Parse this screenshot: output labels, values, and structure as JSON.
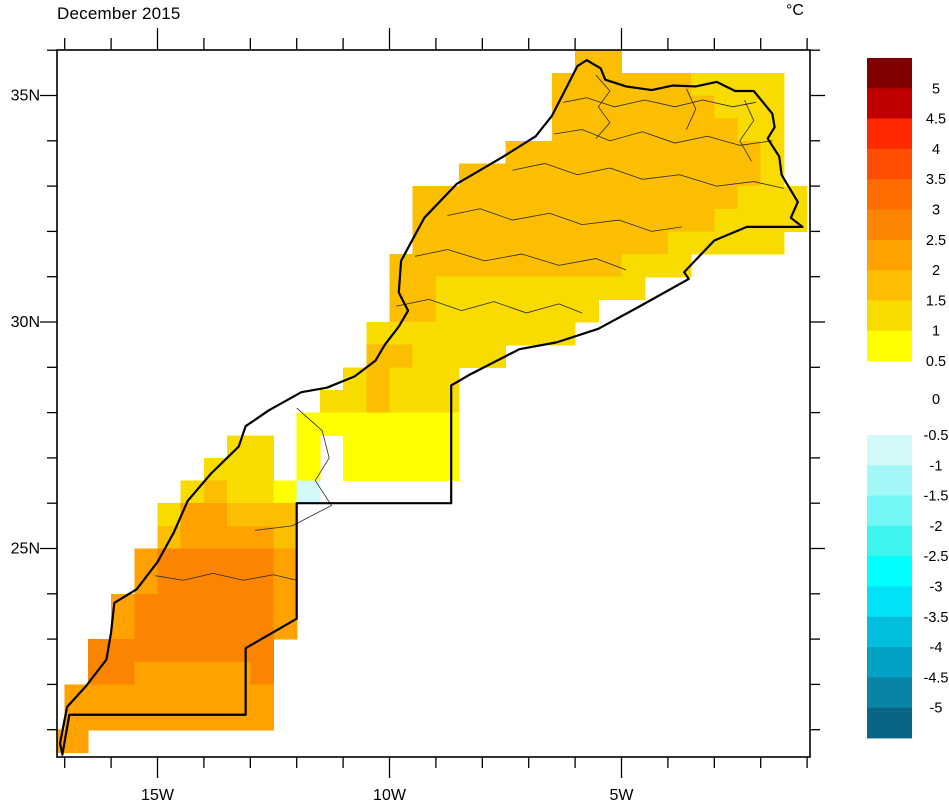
{
  "title": "December 2015",
  "unit_label": "°C",
  "axes": {
    "x_major_ticks": [
      {
        "label": "15W",
        "lon": -15
      },
      {
        "label": "10W",
        "lon": -10
      },
      {
        "label": "5W",
        "lon": -5
      }
    ],
    "x_minor_range": [
      -17,
      -1
    ],
    "y_major_ticks": [
      {
        "label": "35N",
        "lat": 35
      },
      {
        "label": "30N",
        "lat": 30
      },
      {
        "label": "25N",
        "lat": 25
      }
    ],
    "y_minor_range": [
      21,
      36
    ]
  },
  "colorbar": {
    "warm_labels": [
      "5",
      "4.5",
      "4",
      "3.5",
      "3",
      "2.5",
      "2",
      "1.5",
      "1",
      "0.5"
    ],
    "zero_label": "0",
    "cool_labels": [
      "-0.5",
      "-1",
      "-1.5",
      "-2",
      "-2.5",
      "-3",
      "-3.5",
      "-4",
      "-4.5",
      "-5"
    ],
    "warm_colors": [
      "#800000",
      "#C00000",
      "#FF2A00",
      "#FF4E00",
      "#FF6C00",
      "#FB8500",
      "#FFA200",
      "#FCBE00",
      "#F8DC00",
      "#FFFF00"
    ],
    "cool_colors": [
      "#D2FAFA",
      "#A2F8F8",
      "#72F6F6",
      "#3CF6EE",
      "#00FFFF",
      "#00E2F6",
      "#00BEDC",
      "#00A2C4",
      "#0A84A6",
      "#0A6486"
    ]
  },
  "map": {
    "grid": {
      "origin_lon": -17.5,
      "origin_lat": 36.5,
      "cell_deg": 0.5,
      "palette": {
        "y": "#FFFF00",
        "g": "#F8DC00",
        "a": "#FCBE00",
        "o": "#FFA200",
        "O": "#FB8500",
        "c": "#D2FAFA"
      },
      "palette_meaning": {
        "y": "0.5 to 1",
        "g": "1 to 1.5",
        "a": "1.5 to 2",
        "o": "2 to 2.5",
        "O": "2.5 to 3",
        "c": "-0.5 to -1"
      },
      "rows": [
        "..................................",
        ".......................aa.........",
        "......................aaaaaagggg..",
        "......................aaaaaaaggg..",
        "......................aaaaaaaagg..",
        "....................aaaaaaaaaaag..",
        "..................aaaaaaaaaaaaag..",
        "................aaaaaaaaaaaaaaggg.",
        "................aaaaaaaaaaaaagggg.",
        "................aaaaaaaaaaaggggg..",
        "...............aaaaaaaaaaggg......",
        "...............aaggggggggg........",
        "...............aaggggggg..........",
        "..............ggggggggg...........",
        "..............aagggg..............",
        ".............gaggg................",
        "............ggaggg................",
        "...........yyyyyyy................",
        "........gg.y.yyyyy................",
        ".......ggg.y.yyyyy................",
        "......gaggyc......................",
        ".....gooaaa.......................",
        ".....aooooa.......................",
        "....oOOOOOo.......................",
        "....oOOOOOo.......................",
        "...oOOOOOOo.......................",
        "...oOOOOOOo.......................",
        "..OOOOOOOO........................",
        "..OOoooooO........................",
        ".ooooooooo........................",
        ".ooooooooo........................",
        "oo................................",
        ".................................."
      ]
    },
    "border": [
      [
        -5.75,
        35.78
      ],
      [
        -5.45,
        35.6
      ],
      [
        -5.35,
        35.35
      ],
      [
        -4.9,
        35.2
      ],
      [
        -4.35,
        35.12
      ],
      [
        -3.9,
        35.22
      ],
      [
        -3.4,
        35.2
      ],
      [
        -2.95,
        35.3
      ],
      [
        -2.55,
        35.1
      ],
      [
        -2.15,
        35.1
      ],
      [
        -1.95,
        34.85
      ],
      [
        -1.75,
        34.6
      ],
      [
        -1.7,
        34.3
      ],
      [
        -1.85,
        34.05
      ],
      [
        -1.6,
        33.65
      ],
      [
        -1.55,
        33.25
      ],
      [
        -1.2,
        32.65
      ],
      [
        -1.35,
        32.3
      ],
      [
        -1.1,
        32.1
      ],
      [
        -2.3,
        32.1
      ],
      [
        -3.0,
        31.8
      ],
      [
        -3.65,
        31.1
      ],
      [
        -3.55,
        30.95
      ],
      [
        -4.6,
        30.35
      ],
      [
        -5.5,
        29.85
      ],
      [
        -6.4,
        29.55
      ],
      [
        -7.2,
        29.4
      ],
      [
        -8.25,
        28.85
      ],
      [
        -8.67,
        28.6
      ],
      [
        -8.67,
        26.0
      ],
      [
        -12.0,
        26.0
      ],
      [
        -12.0,
        23.45
      ],
      [
        -13.1,
        22.8
      ],
      [
        -13.1,
        21.33
      ],
      [
        -16.9,
        21.33
      ],
      [
        -17.05,
        20.45
      ],
      [
        -17.1,
        20.7
      ],
      [
        -16.95,
        21.5
      ],
      [
        -16.55,
        21.95
      ],
      [
        -16.1,
        22.55
      ],
      [
        -16.0,
        23.15
      ],
      [
        -15.93,
        23.8
      ],
      [
        -15.45,
        24.1
      ],
      [
        -15.0,
        24.7
      ],
      [
        -14.65,
        25.35
      ],
      [
        -14.35,
        26.05
      ],
      [
        -13.85,
        26.65
      ],
      [
        -13.25,
        27.25
      ],
      [
        -13.1,
        27.7
      ],
      [
        -12.6,
        28.05
      ],
      [
        -11.9,
        28.45
      ],
      [
        -11.35,
        28.55
      ],
      [
        -10.75,
        28.8
      ],
      [
        -10.3,
        29.15
      ],
      [
        -10.1,
        29.5
      ],
      [
        -9.8,
        29.9
      ],
      [
        -9.6,
        30.25
      ],
      [
        -9.8,
        30.65
      ],
      [
        -9.75,
        31.35
      ],
      [
        -9.25,
        32.3
      ],
      [
        -8.55,
        33.05
      ],
      [
        -7.55,
        33.65
      ],
      [
        -6.85,
        34.1
      ],
      [
        -6.5,
        34.55
      ],
      [
        -6.2,
        35.15
      ],
      [
        -5.95,
        35.65
      ],
      [
        -5.75,
        35.78
      ]
    ],
    "admin_lines": [
      [
        [
          -5.55,
          35.45
        ],
        [
          -5.25,
          35.1
        ],
        [
          -5.5,
          34.75
        ],
        [
          -5.25,
          34.4
        ],
        [
          -5.55,
          34.05
        ]
      ],
      [
        [
          -6.25,
          34.85
        ],
        [
          -5.75,
          34.95
        ],
        [
          -5.15,
          34.75
        ],
        [
          -4.5,
          34.9
        ],
        [
          -3.85,
          34.75
        ],
        [
          -3.25,
          34.9
        ],
        [
          -2.6,
          34.75
        ],
        [
          -2.1,
          34.85
        ]
      ],
      [
        [
          -6.45,
          34.15
        ],
        [
          -5.85,
          34.25
        ],
        [
          -5.25,
          34.0
        ],
        [
          -4.55,
          34.2
        ],
        [
          -3.85,
          33.95
        ],
        [
          -3.15,
          34.1
        ],
        [
          -2.45,
          33.9
        ],
        [
          -1.75,
          34.0
        ]
      ],
      [
        [
          -7.35,
          33.35
        ],
        [
          -6.65,
          33.5
        ],
        [
          -5.95,
          33.25
        ],
        [
          -5.25,
          33.4
        ],
        [
          -4.55,
          33.15
        ],
        [
          -3.75,
          33.25
        ],
        [
          -2.95,
          33.0
        ],
        [
          -2.15,
          33.1
        ],
        [
          -1.5,
          32.95
        ]
      ],
      [
        [
          -8.75,
          32.35
        ],
        [
          -8.05,
          32.5
        ],
        [
          -7.35,
          32.25
        ],
        [
          -6.55,
          32.4
        ],
        [
          -5.85,
          32.15
        ],
        [
          -5.05,
          32.25
        ],
        [
          -4.35,
          32.0
        ],
        [
          -3.7,
          32.1
        ]
      ],
      [
        [
          -9.45,
          31.45
        ],
        [
          -8.75,
          31.6
        ],
        [
          -7.95,
          31.35
        ],
        [
          -7.15,
          31.5
        ],
        [
          -6.35,
          31.25
        ],
        [
          -5.55,
          31.4
        ],
        [
          -4.9,
          31.15
        ]
      ],
      [
        [
          -9.85,
          30.35
        ],
        [
          -9.15,
          30.5
        ],
        [
          -8.45,
          30.25
        ],
        [
          -7.75,
          30.45
        ],
        [
          -7.05,
          30.2
        ],
        [
          -6.35,
          30.4
        ],
        [
          -5.85,
          30.2
        ]
      ],
      [
        [
          -3.6,
          35.15
        ],
        [
          -3.4,
          34.7
        ],
        [
          -3.6,
          34.25
        ]
      ],
      [
        [
          -2.35,
          34.9
        ],
        [
          -2.15,
          34.45
        ],
        [
          -2.45,
          34.0
        ],
        [
          -2.2,
          33.55
        ]
      ],
      [
        [
          -12.0,
          28.1
        ],
        [
          -11.45,
          27.6
        ],
        [
          -11.3,
          27.0
        ],
        [
          -11.6,
          26.5
        ],
        [
          -11.25,
          25.95
        ],
        [
          -12.1,
          25.5
        ],
        [
          -12.9,
          25.4
        ]
      ],
      [
        [
          -15.05,
          24.4
        ],
        [
          -14.45,
          24.3
        ],
        [
          -13.8,
          24.45
        ],
        [
          -13.15,
          24.3
        ],
        [
          -12.5,
          24.42
        ],
        [
          -12.0,
          24.3
        ]
      ]
    ]
  }
}
